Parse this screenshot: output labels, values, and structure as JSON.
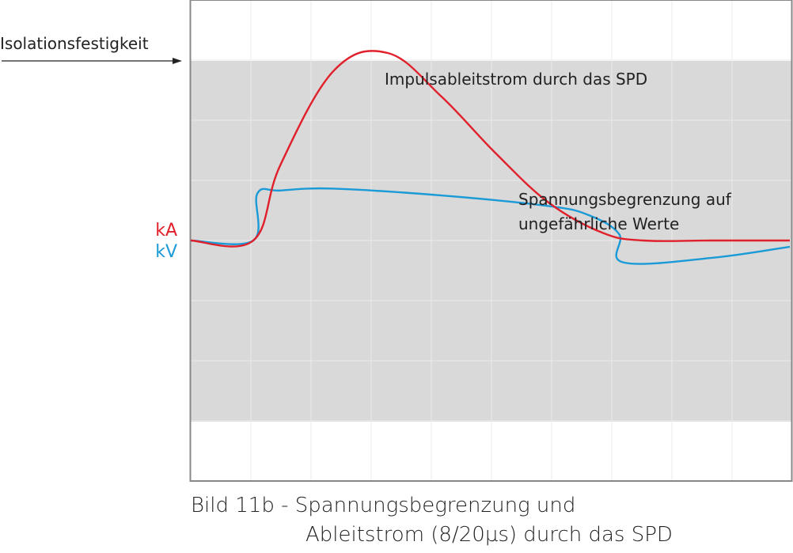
{
  "chart_data": {
    "type": "line",
    "title": "",
    "caption": [
      "Bild 11b - Spannungsbegrenzung und",
      "Ableitstrom (8/20µs) durch das SPD"
    ],
    "xlabel": "",
    "y_axis_labels": [
      {
        "text": "kA",
        "color": "#e0202a"
      },
      {
        "text": "kV",
        "color": "#1a9ad6"
      }
    ],
    "grid": true,
    "insulation_label": "Isolationsfestigkeit",
    "annotations": {
      "current": "Impulsableitstrom durch das SPD",
      "voltage": [
        "Spannungsbegrenzung auf",
        "ungefährliche Werte"
      ]
    },
    "colors": {
      "current": "#e0202a",
      "voltage": "#1a9ad6",
      "band": "#d9d9d9",
      "frame": "#888888",
      "text": "#222222"
    },
    "series": [
      {
        "key": "current",
        "x": [
          0,
          1.0,
          1.2,
          1.6,
          2.0,
          2.4,
          2.8,
          3.2,
          3.6,
          3.9,
          4.4,
          5.0
        ],
        "values": [
          0,
          0,
          1.2,
          2.72,
          3.0,
          2.3,
          1.4,
          0.6,
          0.12,
          0,
          0,
          0
        ]
      },
      {
        "key": "voltage",
        "x": [
          0,
          1.0,
          1.03,
          1.2,
          1.6,
          2.4,
          3.2,
          3.5,
          3.72,
          3.75,
          4.4,
          5.0
        ],
        "values": [
          0,
          0,
          0.75,
          0.8,
          0.83,
          0.72,
          0.55,
          0.4,
          0.1,
          -0.35,
          -0.28,
          -0.1
        ]
      }
    ]
  }
}
